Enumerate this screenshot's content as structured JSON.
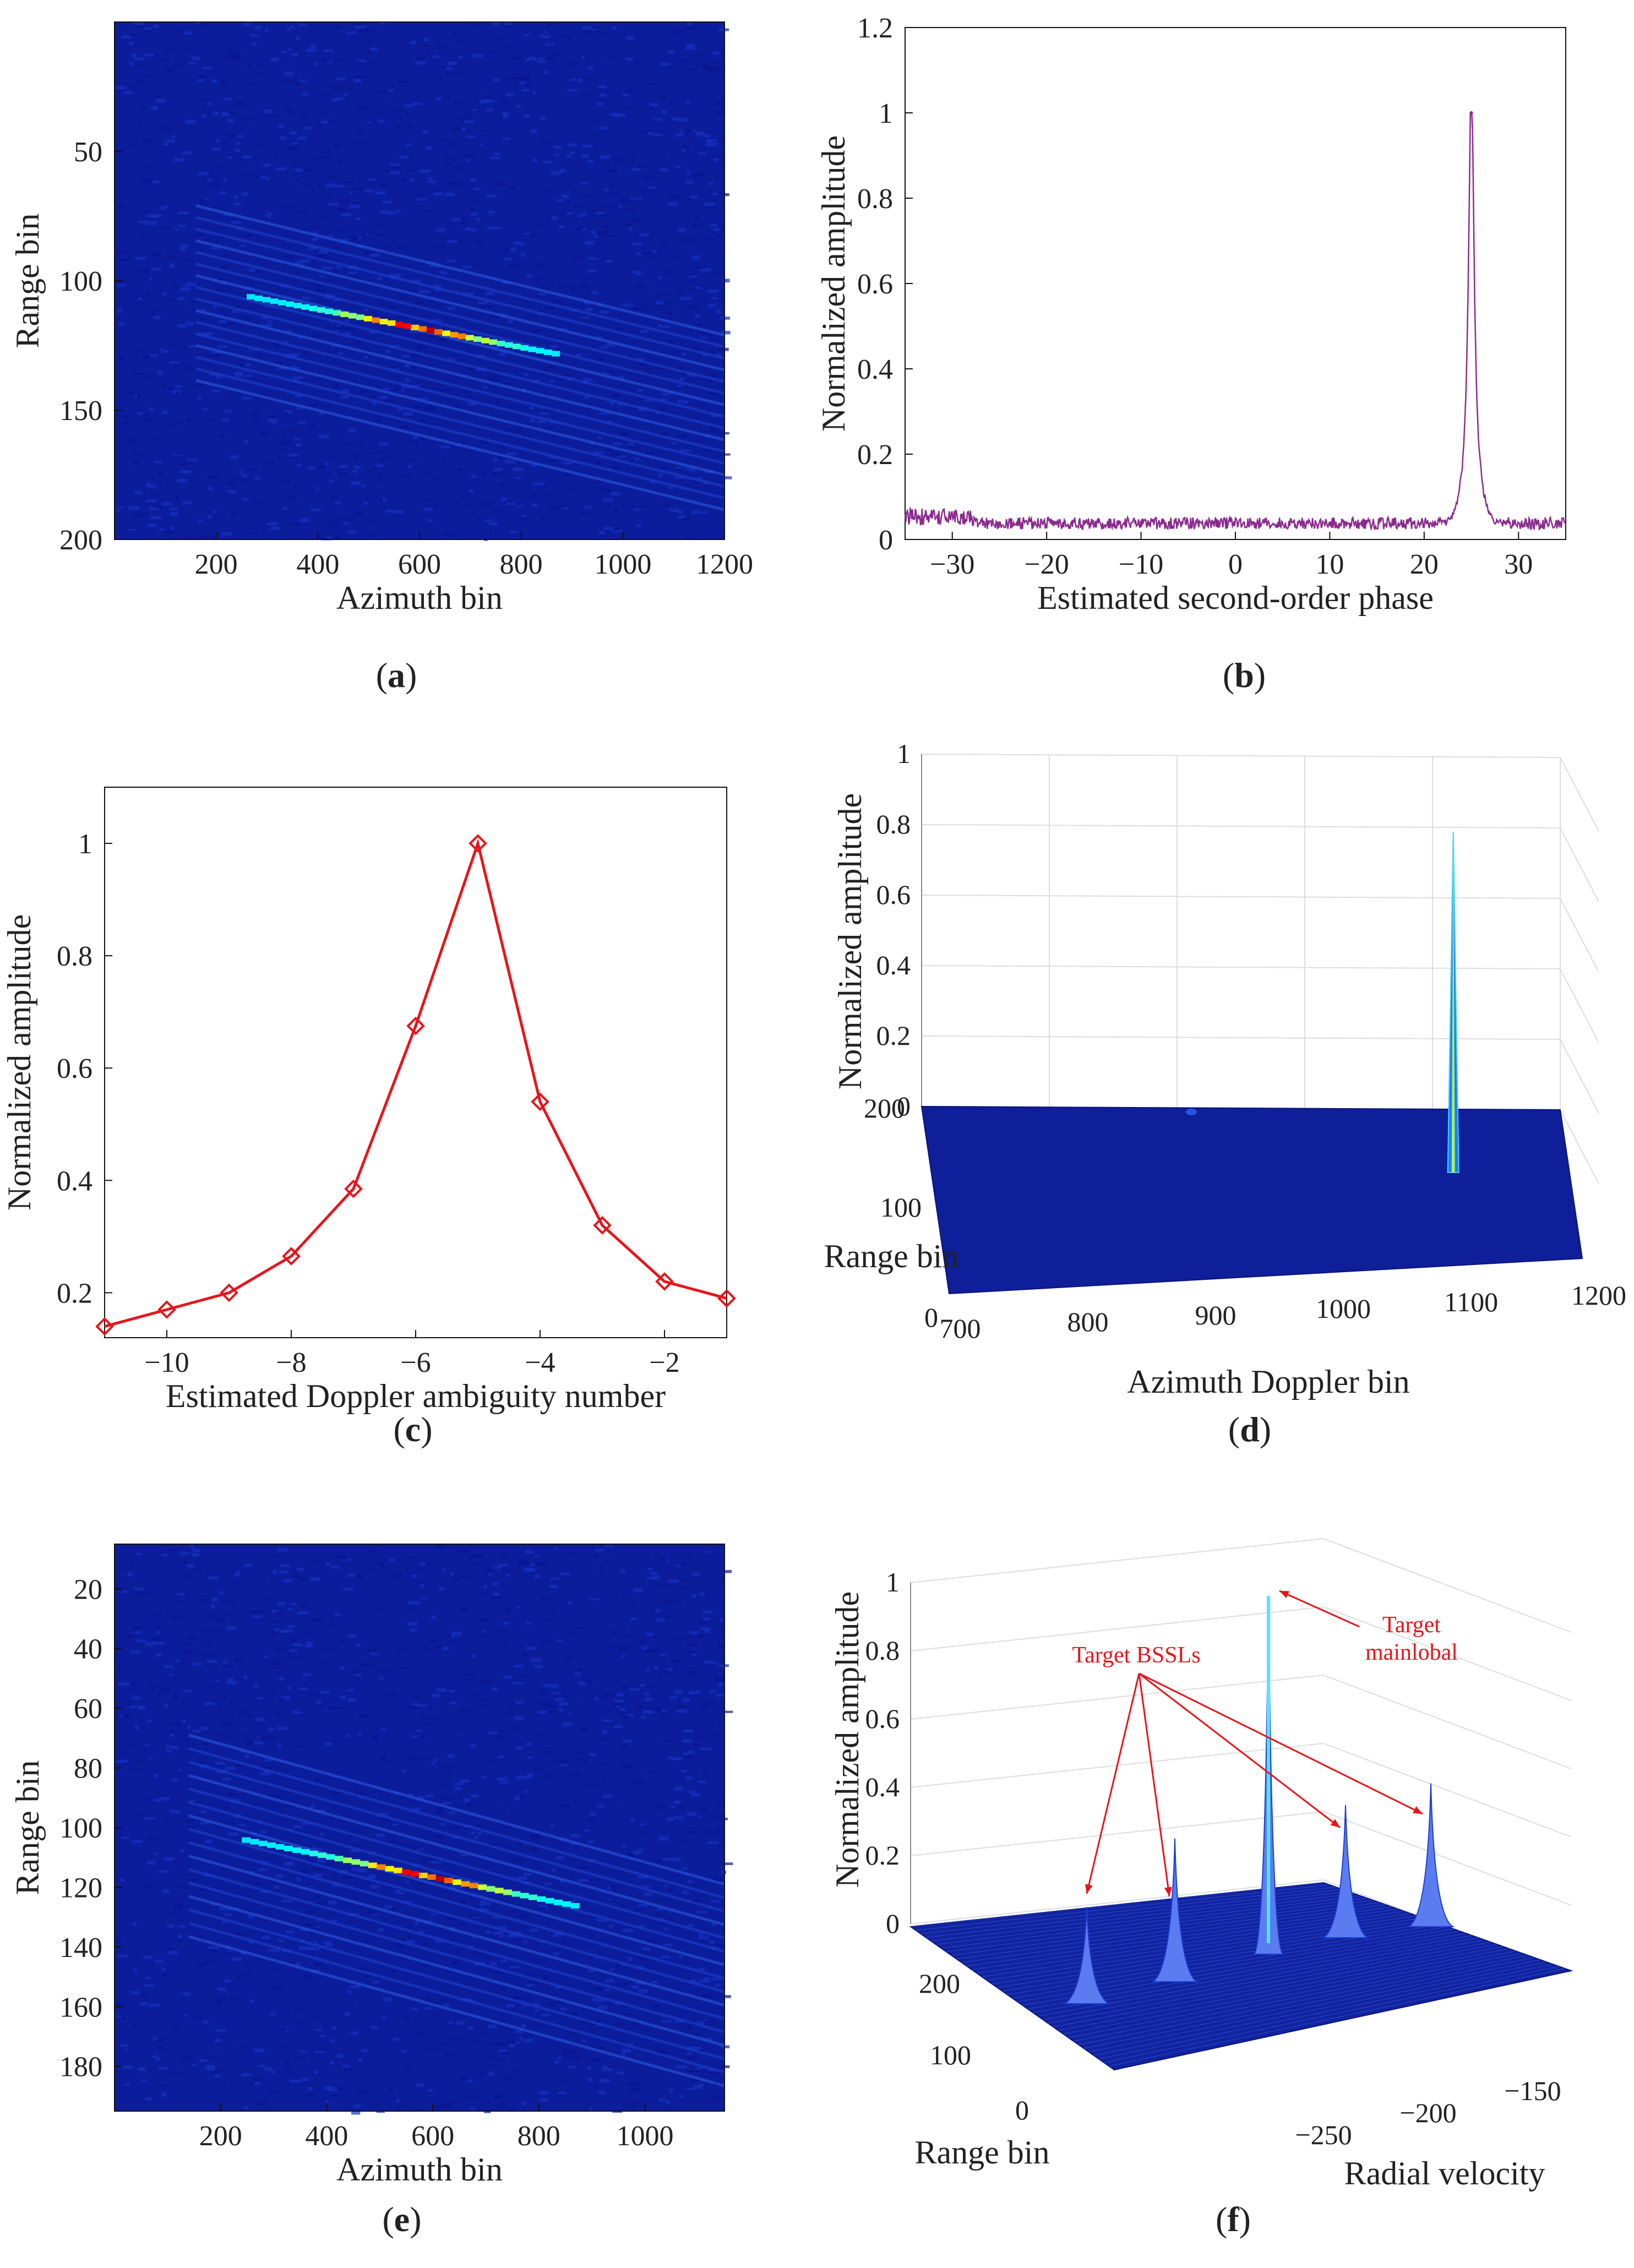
{
  "panels": {
    "a": {
      "caption": "a"
    },
    "b": {
      "caption": "b"
    },
    "c": {
      "caption": "c"
    },
    "d": {
      "caption": "d"
    },
    "e": {
      "caption": "e"
    },
    "f": {
      "caption": "f"
    }
  },
  "chart_data": [
    {
      "id": "a",
      "type": "heatmap",
      "xlabel": "Azimuth bin",
      "ylabel": "Range bin",
      "xlim": [
        0,
        1200
      ],
      "ylim": [
        200,
        0
      ],
      "xticks": [
        "200",
        "400",
        "600",
        "800",
        "1000",
        "1200"
      ],
      "yticks": [
        "50",
        "100",
        "150",
        "200"
      ],
      "colormap": "jet",
      "streak": {
        "x": [
          260,
          860
        ],
        "y": [
          106,
          128
        ]
      }
    },
    {
      "id": "b",
      "type": "line",
      "xlabel": "Estimated second-order phase",
      "ylabel": "Normalized amplitude",
      "xlim": [
        -35,
        35
      ],
      "ylim": [
        0,
        1.2
      ],
      "xticks": [
        "−30",
        "−20",
        "−10",
        "0",
        "10",
        "20",
        "30"
      ],
      "yticks": [
        "0",
        "0.2",
        "0.4",
        "0.6",
        "0.8",
        "1",
        "1.2"
      ],
      "color": "#8b2a8e",
      "peak": {
        "x": 25,
        "y": 1.0
      },
      "noise_floor": 0.04
    },
    {
      "id": "c",
      "type": "line",
      "xlabel": "Estimated Doppler ambiguity number",
      "ylabel": "Normalized amplitude",
      "xlim": [
        -11,
        -1
      ],
      "ylim": [
        0.12,
        1.1
      ],
      "xticks": [
        "−10",
        "−8",
        "−6",
        "−4",
        "−2"
      ],
      "yticks": [
        "0.2",
        "0.4",
        "0.6",
        "0.8",
        "1"
      ],
      "color": "#e8141b",
      "marker": "diamond",
      "x": [
        -11,
        -10,
        -9,
        -8,
        -7,
        -6,
        -5,
        -4,
        -3,
        -2,
        -1
      ],
      "y": [
        0.14,
        0.17,
        0.2,
        0.265,
        0.385,
        0.675,
        1.0,
        0.54,
        0.32,
        0.22,
        0.19
      ]
    },
    {
      "id": "d",
      "type": "surface3d",
      "xlabel": "Azimuth Doppler bin",
      "ylabel": "Range bin",
      "zlabel": "Normalized amplitude",
      "xticks": [
        "700",
        "800",
        "900",
        "1000",
        "1100",
        "1200"
      ],
      "yticks": [
        "0",
        "100",
        "200"
      ],
      "zticks": [
        "0",
        "0.2",
        "0.4",
        "0.6",
        "0.8",
        "1"
      ],
      "peak": {
        "x": 1085,
        "z": 0.78
      }
    },
    {
      "id": "e",
      "type": "heatmap",
      "xlabel": "Azimuth bin",
      "ylabel": "Range bin",
      "xlim": [
        0,
        1150
      ],
      "ylim": [
        195,
        5
      ],
      "xticks": [
        "200",
        "400",
        "600",
        "800",
        "1000"
      ],
      "yticks": [
        "20",
        "40",
        "60",
        "80",
        "100",
        "120",
        "140",
        "160",
        "180"
      ],
      "colormap": "jet",
      "streak": {
        "x": [
          240,
          860
        ],
        "y": [
          104,
          126
        ]
      }
    },
    {
      "id": "f",
      "type": "surface3d",
      "xlabel": "Radial velocity",
      "ylabel": "Range bin",
      "zlabel": "Normalized amplitude",
      "xticks": [
        "−250",
        "−200",
        "−150"
      ],
      "yticks": [
        "0",
        "100",
        "200"
      ],
      "zticks": [
        "0",
        "0.2",
        "0.4",
        "0.6",
        "0.8",
        "1"
      ],
      "peaks": [
        0.27,
        0.4,
        1.0,
        0.37,
        0.4
      ],
      "annotations": [
        "Target BSSLs",
        "Target",
        "mainlobal"
      ]
    }
  ]
}
